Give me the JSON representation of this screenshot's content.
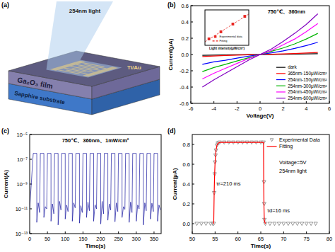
{
  "diagram": {
    "panel_label": "(a)",
    "light": "254nm light",
    "electrode": "Ti/Au",
    "film": "Ga₂O₃ film",
    "substrate": "Sapphire substrate"
  },
  "chart_data": [
    {
      "type": "line",
      "panel_label": "(b)",
      "title": "750℃、360nm",
      "x_label": "Voltage(V)",
      "y_label": "Current(μA)",
      "x": [
        -5,
        -4,
        -3,
        -2,
        -1,
        0,
        1,
        2,
        3,
        4,
        5
      ],
      "xlim": [
        -6,
        6
      ],
      "xticks": [
        -6,
        -4,
        -2,
        0,
        2,
        4,
        6
      ],
      "ylim": [
        -0.6,
        0.6
      ],
      "yticks": [
        -0.6,
        -0.4,
        -0.2,
        {
          "value": 0,
          "label": "0.0"
        },
        0.2,
        0.4,
        0.6
      ],
      "legend": "lower right",
      "series": [
        {
          "name": "dark",
          "color": "#000000",
          "values": [
            -0.01,
            -0.008,
            -0.005,
            -0.003,
            -0.001,
            0,
            0.001,
            0.003,
            0.005,
            0.008,
            0.01
          ]
        },
        {
          "name": "365nm-150μW/cm²",
          "color": "#ff0000",
          "values": [
            -0.025,
            -0.018,
            -0.012,
            -0.007,
            -0.003,
            0,
            0.003,
            0.007,
            0.012,
            0.018,
            0.025
          ]
        },
        {
          "name": "254nm-150μW/cm²",
          "color": "#0000ff",
          "values": [
            -0.12,
            -0.09,
            -0.07,
            -0.045,
            -0.02,
            0,
            0.02,
            0.045,
            0.075,
            0.11,
            0.15
          ]
        },
        {
          "name": "254nm-300μW/cm²",
          "color": "#00b400",
          "values": [
            -0.21,
            -0.16,
            -0.12,
            -0.08,
            -0.04,
            0,
            0.04,
            0.08,
            0.13,
            0.19,
            0.26
          ]
        },
        {
          "name": "254nm-450μW/cm²",
          "color": "#ff00ff",
          "values": [
            -0.3,
            -0.23,
            -0.17,
            -0.11,
            -0.05,
            0,
            0.05,
            0.12,
            0.19,
            0.28,
            0.38
          ]
        },
        {
          "name": "254nm-600μW/cm²",
          "color": "#8000c0",
          "values": [
            -0.4,
            -0.31,
            -0.23,
            -0.15,
            -0.07,
            0,
            0.07,
            0.16,
            0.26,
            0.37,
            0.5
          ]
        }
      ]
    },
    {
      "type": "scatter",
      "x_label": "Light intensity(μW/cm²)",
      "xlim": [
        100,
        650
      ],
      "xticks": [],
      "ylim": [
        0.05,
        0.6
      ],
      "yticks": [],
      "tick_labels": false,
      "legend": "lower right",
      "series": [
        {
          "name": "Experimental data",
          "color": "#e8231f",
          "marker": "square",
          "x": [
            150,
            300,
            450,
            600
          ],
          "values": [
            0.15,
            0.26,
            0.38,
            0.5
          ]
        },
        {
          "name": "Fitting",
          "type": "line",
          "color": "#e8231f",
          "line_style": "dashed",
          "x": [
            100,
            650
          ],
          "values": [
            0.105,
            0.535
          ]
        }
      ]
    },
    {
      "type": "line",
      "panel_label": "(c)",
      "title": "750℃、360nm、1mW/cm²",
      "x_label": "Time(s)",
      "y_label": "Current(A)",
      "log": "y",
      "x": [
        0,
        10,
        20,
        20,
        24,
        28,
        30,
        40,
        40,
        44,
        48,
        50,
        60,
        60,
        64,
        68,
        70,
        80,
        80,
        84,
        88,
        90,
        100,
        100,
        104,
        108,
        110,
        120,
        120,
        124,
        128,
        130,
        140,
        140,
        144,
        148,
        150,
        160,
        160,
        164,
        168,
        170,
        180,
        180,
        184,
        188,
        190,
        200,
        200,
        204,
        208,
        210,
        220,
        220,
        224,
        228,
        230,
        240,
        240,
        244,
        248,
        250,
        260,
        260,
        264,
        268,
        270,
        280,
        280,
        284,
        288,
        290,
        300,
        300,
        304,
        308,
        310,
        320,
        320,
        324,
        328,
        330,
        340,
        340,
        344,
        348,
        350,
        360,
        360,
        364,
        368
      ],
      "xlim": [
        0,
        370
      ],
      "xticks": [
        0,
        50,
        100,
        150,
        200,
        250,
        300,
        350
      ],
      "ylim": [
        1e-13,
        1e-05
      ],
      "yticks": [
        {
          "value": 1e-13,
          "label": "10⁻¹³"
        },
        {
          "value": 1e-11,
          "label": "10⁻¹¹"
        },
        {
          "value": 1e-09,
          "label": "10⁻⁹"
        },
        {
          "value": 1e-07,
          "label": "10⁻⁷"
        },
        {
          "value": 1e-05,
          "label": "10⁻⁵"
        }
      ],
      "series": [
        {
          "color": "#1a1aa0",
          "values": [
            1e-11,
            3e-07,
            3e-07,
            8e-13,
            3e-11,
            5e-12,
            3e-07,
            3e-07,
            2e-12,
            1.5e-11,
            1e-11,
            3e-07,
            3e-07,
            1e-12,
            2.5e-11,
            4e-12,
            3e-07,
            3e-07,
            5e-13,
            4e-11,
            8e-12,
            3e-07,
            3e-07,
            1.5e-12,
            2e-11,
            6e-12,
            3e-07,
            3e-07,
            1e-12,
            3e-11,
            1.2e-11,
            3e-07,
            3e-07,
            7e-13,
            1.8e-11,
            5e-12,
            3e-07,
            3e-07,
            2e-12,
            3.5e-11,
            7e-12,
            3e-07,
            3e-07,
            1e-12,
            2.2e-11,
            1e-11,
            3e-07,
            3e-07,
            6e-13,
            4e-11,
            4e-12,
            3e-07,
            3e-07,
            1.2e-12,
            2.5e-11,
            8e-12,
            3e-07,
            3e-07,
            9e-13,
            3e-11,
            6e-12,
            3e-07,
            3e-07,
            2e-12,
            1.5e-11,
            9e-12,
            3e-07,
            3e-07,
            8e-13,
            3.5e-11,
            5e-12,
            3e-07,
            3e-07,
            1e-12,
            2e-11,
            1e-11,
            3e-07,
            3e-07,
            5e-13,
            3e-11,
            7e-12,
            3e-07,
            3e-07,
            1.5e-12,
            2.8e-11,
            6e-12,
            3e-07,
            3e-07,
            1e-12,
            2e-11,
            8e-12
          ]
        }
      ]
    },
    {
      "type": "scatter",
      "panel_label": "(d)",
      "x_label": "Time(s)",
      "y_label": "Current(μA)",
      "xlim": [
        50,
        80
      ],
      "xticks": [
        50,
        55,
        60,
        65,
        70,
        75,
        80
      ],
      "ylim": [
        -0.1,
        0.9
      ],
      "yticks": [
        {
          "value": 0,
          "label": "0.0"
        },
        0.2,
        0.4,
        0.6,
        0.8
      ],
      "legend": "upper right",
      "annotations": [
        "Voltage=5V",
        "254nm light",
        "τr=210 ms",
        "τd=16 ms"
      ],
      "series": [
        {
          "name": "Experimental Data",
          "color": "#808080",
          "marker": "triangle-down",
          "x": [
            51,
            52,
            53,
            54,
            54.5,
            54.7,
            54.8,
            54.9,
            55.0,
            55.1,
            55.2,
            55.4,
            55.6,
            55.8,
            56,
            57,
            58,
            59,
            60,
            61,
            62,
            63,
            64,
            65,
            65.6,
            65.7,
            65.75,
            65.8,
            66,
            67,
            68,
            69,
            70,
            71,
            72,
            73,
            74,
            75,
            76,
            77
          ],
          "values": [
            0,
            0,
            0,
            0,
            0,
            0,
            0.31,
            0.5,
            0.62,
            0.69,
            0.74,
            0.79,
            0.81,
            0.815,
            0.82,
            0.82,
            0.82,
            0.82,
            0.82,
            0.82,
            0.82,
            0.82,
            0.82,
            0.82,
            0.82,
            0.42,
            0.2,
            0.04,
            0,
            0,
            0,
            0,
            0,
            0,
            0,
            0,
            0,
            0,
            0,
            0
          ]
        },
        {
          "name": "Fitting",
          "type": "line",
          "color": "#ff0000",
          "x": [
            54.7,
            54.8,
            54.9,
            55.0,
            55.2,
            55.4,
            55.6,
            56,
            65.6,
            65.65,
            65.7,
            65.75,
            65.8,
            66
          ],
          "values": [
            0,
            0.31,
            0.5,
            0.62,
            0.74,
            0.79,
            0.81,
            0.82,
            0.82,
            0.36,
            0.16,
            0.07,
            0.03,
            0
          ]
        }
      ]
    }
  ]
}
